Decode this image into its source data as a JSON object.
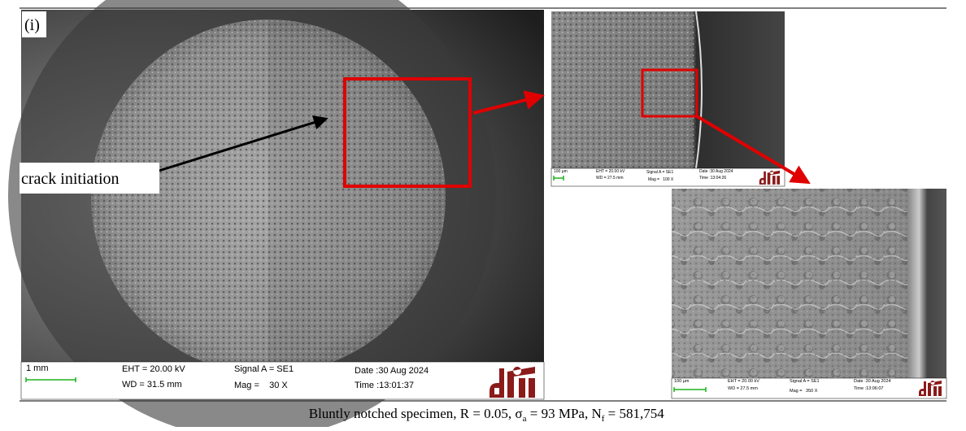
{
  "panel_label": "(i)",
  "annotation": "crack initiation",
  "images": {
    "overview": {
      "scale": "1 mm",
      "eht": "EHT = 20.00 kV",
      "wd": "WD = 31.5 mm",
      "signal": "Signal A = SE1",
      "mag": "Mag =    30 X",
      "date": "Date :30 Aug 2024",
      "time": "Time :13:01:37"
    },
    "detail": {
      "scale": "100 µm",
      "eht": "EHT = 20.00 kV",
      "wd": "WD = 27.5 mm",
      "signal": "Signal A = SE1",
      "mag": "Mag =   100 X",
      "date": "Date :30 Aug 2024",
      "time": "Time :13:04:26"
    },
    "close_up": {
      "scale": "100 µm",
      "eht": "EHT = 20.00 kV",
      "wd": "WD = 27.5 mm",
      "signal": "Signal A = SE1",
      "mag": "Mag =   350 X",
      "date": "Date :30 Aug 2024",
      "time": "Time :13:06:07"
    }
  },
  "caption": [
    "Bluntly notched specimen, R = 0.05, σ",
    "a",
    " = 93 MPa, N",
    "f",
    " = 581,754"
  ]
}
